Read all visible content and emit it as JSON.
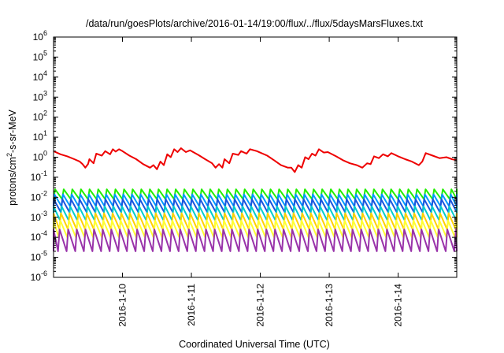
{
  "chart_data": {
    "type": "line",
    "title": "/data/run/goesPlots/archive/2016-01-14/19:00/flux/../flux/5daysMarsFluxes.txt",
    "xlabel": "Coordinated Universal Time (UTC)",
    "ylabel": {
      "base": "protons/cm",
      "sup": "2",
      "rest": "-s-sr-MeV"
    },
    "yscale": "log",
    "ylim": [
      1e-06,
      1000000.0
    ],
    "xlim": [
      0,
      5.85
    ],
    "grid": false,
    "legend": "none",
    "yticks": [
      {
        "base": "10",
        "exp": "-6",
        "value": -6
      },
      {
        "base": "10",
        "exp": "-5",
        "value": -5
      },
      {
        "base": "10",
        "exp": "-4",
        "value": -4
      },
      {
        "base": "10",
        "exp": "-3",
        "value": -3
      },
      {
        "base": "10",
        "exp": "-2",
        "value": -2
      },
      {
        "base": "10",
        "exp": "-1",
        "value": -1
      },
      {
        "base": "10",
        "exp": "0",
        "value": 0
      },
      {
        "base": "10",
        "exp": "1",
        "value": 1
      },
      {
        "base": "10",
        "exp": "2",
        "value": 2
      },
      {
        "base": "10",
        "exp": "3",
        "value": 3
      },
      {
        "base": "10",
        "exp": "4",
        "value": 4
      },
      {
        "base": "10",
        "exp": "5",
        "value": 5
      },
      {
        "base": "10",
        "exp": "6",
        "value": 6
      }
    ],
    "xticks": [
      {
        "label": "2016-1-10",
        "value": 1
      },
      {
        "label": "2016-1-11",
        "value": 2
      },
      {
        "label": "2016-1-12",
        "value": 3
      },
      {
        "label": "2016-1-13",
        "value": 4
      },
      {
        "label": "2016-1-14",
        "value": 5
      }
    ],
    "series": [
      {
        "color": "#ee0000",
        "kind": "sawtooth",
        "points": [
          [
            0,
            2
          ],
          [
            0.1,
            1.4
          ],
          [
            0.2,
            1.1
          ],
          [
            0.3,
            0.8
          ],
          [
            0.38,
            0.6
          ],
          [
            0.42,
            0.45
          ],
          [
            0.46,
            0.3
          ],
          [
            0.5,
            0.45
          ],
          [
            0.52,
            0.8
          ],
          [
            0.58,
            0.5
          ],
          [
            0.62,
            1.5
          ],
          [
            0.7,
            1.2
          ],
          [
            0.75,
            2
          ],
          [
            0.82,
            1.4
          ],
          [
            0.86,
            2.5
          ],
          [
            0.9,
            1.9
          ],
          [
            0.95,
            2.5
          ],
          [
            1.0,
            2
          ],
          [
            1.1,
            1.2
          ],
          [
            1.2,
            0.8
          ],
          [
            1.3,
            0.45
          ],
          [
            1.4,
            0.3
          ],
          [
            1.45,
            0.4
          ],
          [
            1.5,
            0.25
          ],
          [
            1.55,
            0.6
          ],
          [
            1.6,
            0.4
          ],
          [
            1.65,
            1.4
          ],
          [
            1.7,
            1
          ],
          [
            1.75,
            2.5
          ],
          [
            1.8,
            1.8
          ],
          [
            1.85,
            2.8
          ],
          [
            1.92,
            1.8
          ],
          [
            1.98,
            2.2
          ],
          [
            2.1,
            1.3
          ],
          [
            2.2,
            0.8
          ],
          [
            2.3,
            0.5
          ],
          [
            2.35,
            0.3
          ],
          [
            2.4,
            0.45
          ],
          [
            2.45,
            0.3
          ],
          [
            2.48,
            0.8
          ],
          [
            2.55,
            0.5
          ],
          [
            2.6,
            1.5
          ],
          [
            2.68,
            1.3
          ],
          [
            2.72,
            2
          ],
          [
            2.8,
            1.5
          ],
          [
            2.85,
            2.5
          ],
          [
            2.95,
            2
          ],
          [
            3.1,
            1.2
          ],
          [
            3.2,
            0.7
          ],
          [
            3.3,
            0.4
          ],
          [
            3.4,
            0.3
          ],
          [
            3.45,
            0.3
          ],
          [
            3.5,
            0.18
          ],
          [
            3.55,
            0.4
          ],
          [
            3.6,
            0.3
          ],
          [
            3.65,
            1
          ],
          [
            3.7,
            0.8
          ],
          [
            3.75,
            1.5
          ],
          [
            3.8,
            1.2
          ],
          [
            3.85,
            2.5
          ],
          [
            3.92,
            1.7
          ],
          [
            3.98,
            1.8
          ],
          [
            4.1,
            1.1
          ],
          [
            4.2,
            0.7
          ],
          [
            4.3,
            0.5
          ],
          [
            4.4,
            0.4
          ],
          [
            4.48,
            0.3
          ],
          [
            4.55,
            0.5
          ],
          [
            4.6,
            0.45
          ],
          [
            4.65,
            1.1
          ],
          [
            4.72,
            0.9
          ],
          [
            4.78,
            1.4
          ],
          [
            4.85,
            1.1
          ],
          [
            4.9,
            1.6
          ],
          [
            5.0,
            1.1
          ],
          [
            5.1,
            0.8
          ],
          [
            5.2,
            0.6
          ],
          [
            5.3,
            0.4
          ],
          [
            5.35,
            0.6
          ],
          [
            5.4,
            1.6
          ],
          [
            5.5,
            1.2
          ],
          [
            5.6,
            0.9
          ],
          [
            5.7,
            1.0
          ],
          [
            5.78,
            0.8
          ],
          [
            5.85,
            0.7
          ]
        ]
      },
      {
        "color": "#22ee00",
        "kind": "periodic",
        "period": 0.125,
        "top": 0.025,
        "bottom": 0.008,
        "phase": 0.0
      },
      {
        "color": "#0099ff",
        "kind": "periodic",
        "period": 0.125,
        "top": 0.014,
        "bottom": 0.0035,
        "phase": 0.01
      },
      {
        "color": "#1a55dd",
        "kind": "periodic",
        "period": 0.125,
        "top": 0.008,
        "bottom": 0.0018,
        "phase": 0.02
      },
      {
        "color": "#00cccc",
        "kind": "periodic",
        "period": 0.125,
        "top": 0.0035,
        "bottom": 0.0007,
        "phase": 0.03
      },
      {
        "color": "#ffd000",
        "kind": "periodic",
        "period": 0.125,
        "top": 0.0016,
        "bottom": 0.00025,
        "phase": 0.04
      },
      {
        "color": "#ffff33",
        "kind": "periodic",
        "period": 0.125,
        "top": 0.0007,
        "bottom": 0.0001,
        "phase": 0.05
      },
      {
        "color": "#9933aa",
        "kind": "periodic",
        "period": 0.125,
        "top": 0.00025,
        "bottom": 2e-05,
        "phase": 0.06
      }
    ]
  }
}
